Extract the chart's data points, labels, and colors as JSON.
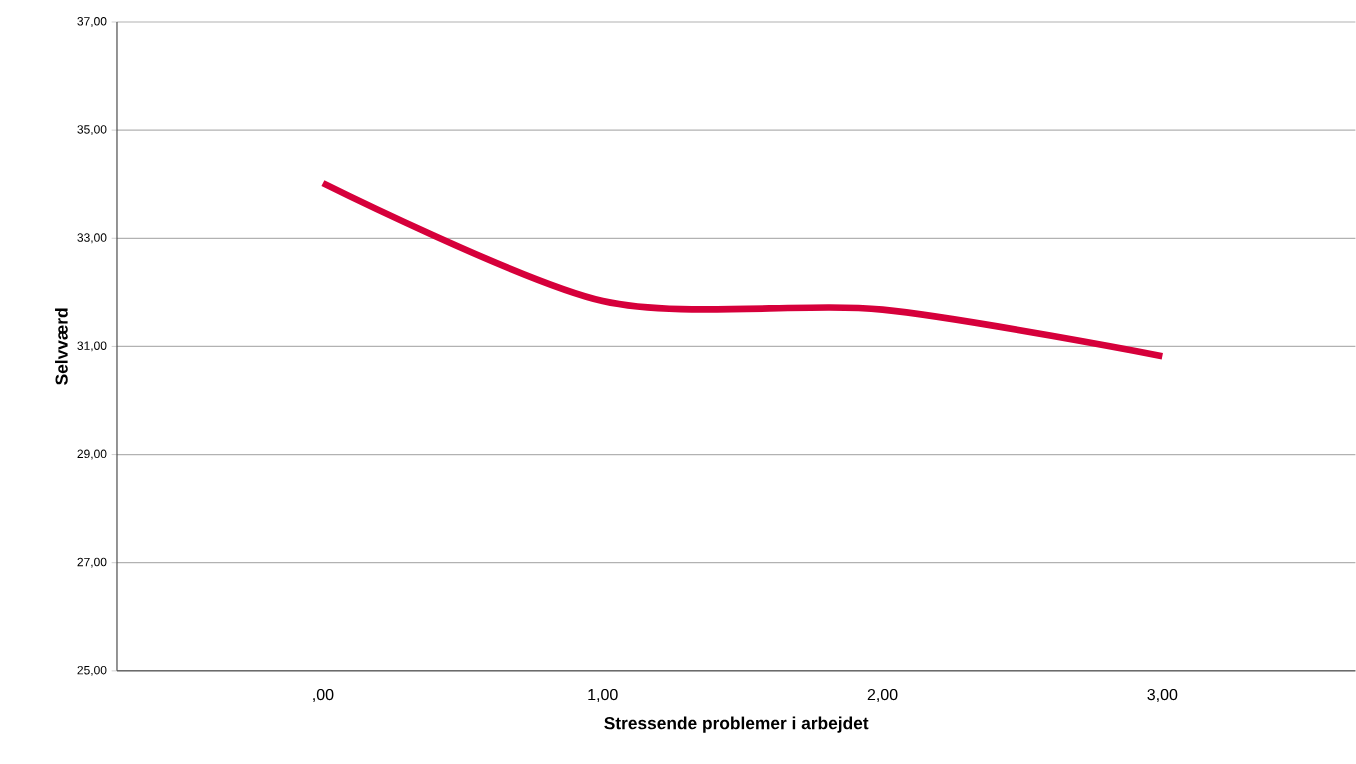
{
  "chart_data": {
    "type": "line",
    "xlabel": "Stressende problemer i arbejdet",
    "ylabel": "Selvværd",
    "categories": [
      ",00",
      "1,00",
      "2,00",
      "3,00"
    ],
    "values": [
      34.02,
      31.84,
      31.68,
      30.82
    ],
    "color": "#d6003b",
    "ylim": [
      25,
      37
    ],
    "yticks": [
      {
        "value": 25,
        "label": "25,00"
      },
      {
        "value": 27,
        "label": "27,00"
      },
      {
        "value": 29,
        "label": "29,00"
      },
      {
        "value": 31,
        "label": "31,00"
      },
      {
        "value": 33,
        "label": "33,00"
      },
      {
        "value": 35,
        "label": "35,00"
      },
      {
        "value": 37,
        "label": "37,00"
      }
    ],
    "grid": "y",
    "marker": "none",
    "line_style": "solid"
  }
}
